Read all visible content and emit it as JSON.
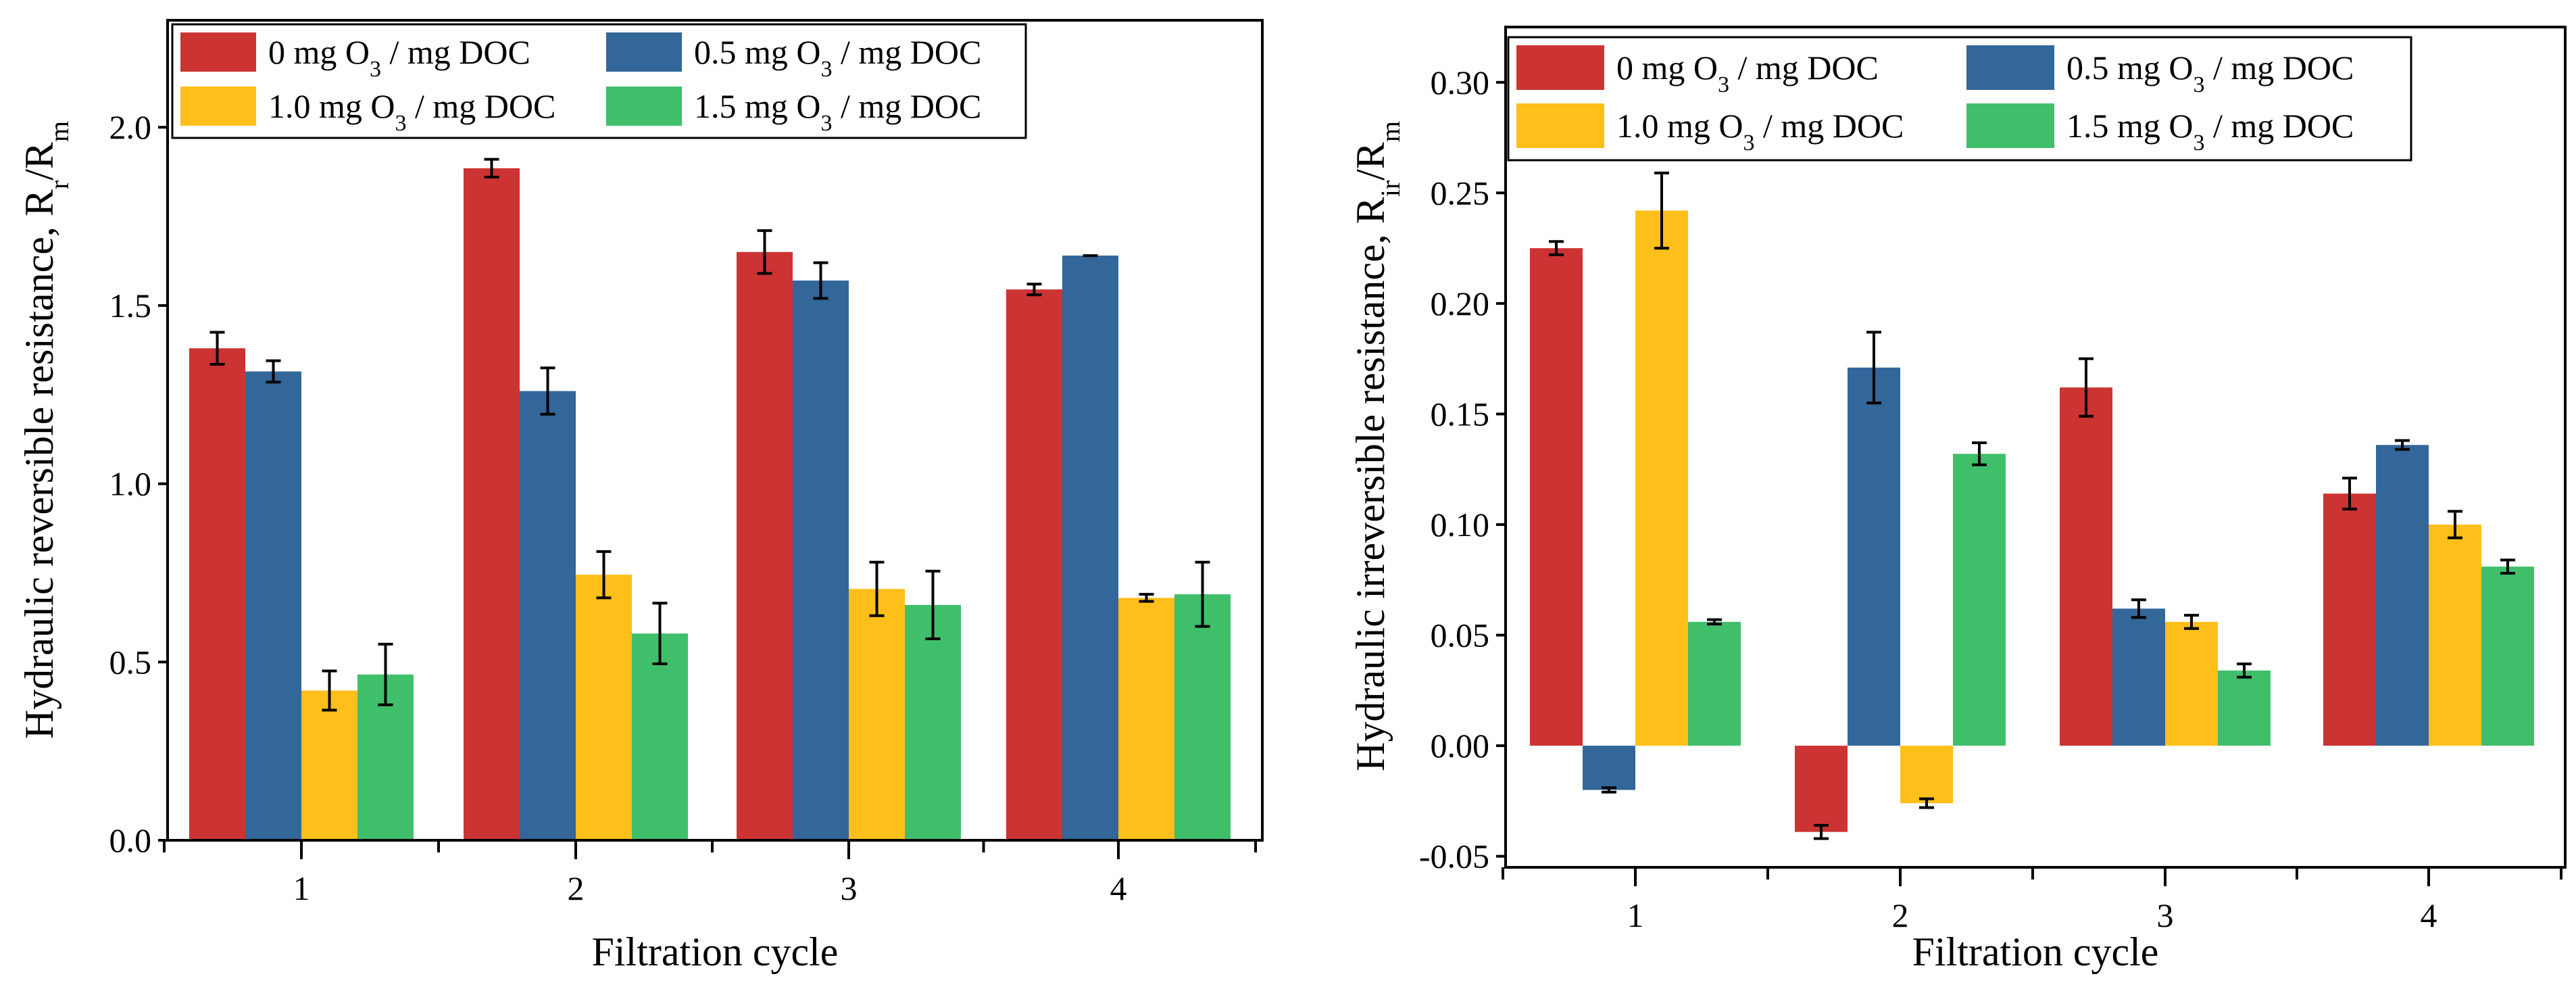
{
  "colors": {
    "s0": "#cc3333",
    "s05": "#336699",
    "s10": "#ffbf1a",
    "s15": "#40bf6b"
  },
  "chart_data": [
    {
      "type": "bar",
      "title": "",
      "xlabel": "Filtration cycle",
      "ylabel": {
        "main": "Hydraulic reversible resistance, R",
        "sub1": "r",
        "mid": "/R",
        "sub2": "m"
      },
      "categories": [
        "1",
        "2",
        "3",
        "4"
      ],
      "ylim": [
        0,
        2.3
      ],
      "yticks": [
        0.0,
        0.5,
        1.0,
        1.5,
        2.0
      ],
      "ytick_labels": [
        "0.0",
        "0.5",
        "1.0",
        "1.5",
        "2.0"
      ],
      "legend": "top-left, two columns",
      "series": [
        {
          "key": "s0",
          "label": {
            "pre": "0    mg O",
            "sub": "3",
            "post": " / mg DOC"
          },
          "values": [
            1.38,
            1.885,
            1.65,
            1.545
          ],
          "errors": [
            0.045,
            0.025,
            0.06,
            0.015
          ]
        },
        {
          "key": "s05",
          "label": {
            "pre": "0.5 mg O",
            "sub": "3",
            "post": " / mg DOC"
          },
          "values": [
            1.315,
            1.26,
            1.57,
            1.64
          ],
          "errors": [
            0.03,
            0.065,
            0.05,
            0.0
          ]
        },
        {
          "key": "s10",
          "label": {
            "pre": "1.0 mg O",
            "sub": "3",
            "post": " / mg DOC"
          },
          "values": [
            0.42,
            0.745,
            0.705,
            0.68
          ],
          "errors": [
            0.055,
            0.065,
            0.075,
            0.01
          ]
        },
        {
          "key": "s15",
          "label": {
            "pre": "1.5 mg O",
            "sub": "3",
            "post": " / mg DOC"
          },
          "values": [
            0.465,
            0.58,
            0.66,
            0.69
          ],
          "errors": [
            0.085,
            0.085,
            0.095,
            0.09
          ]
        }
      ]
    },
    {
      "type": "bar",
      "title": "",
      "xlabel": "Filtration cycle",
      "ylabel": {
        "main": "Hydraulic irreversible resistance, R",
        "sub1": "ir",
        "mid": "/R",
        "sub2": "m"
      },
      "categories": [
        "1",
        "2",
        "3",
        "4"
      ],
      "ylim": [
        -0.055,
        0.325
      ],
      "yticks": [
        -0.05,
        0.0,
        0.05,
        0.1,
        0.15,
        0.2,
        0.25,
        0.3
      ],
      "ytick_labels": [
        "-0.05",
        "0.00",
        "0.05",
        "0.10",
        "0.15",
        "0.20",
        "0.25",
        "0.30"
      ],
      "legend": "top-left, two columns",
      "series": [
        {
          "key": "s0",
          "label": {
            "pre": "0    mg O",
            "sub": "3",
            "post": " / mg DOC"
          },
          "values": [
            0.225,
            -0.039,
            0.162,
            0.114
          ],
          "errors": [
            0.003,
            0.003,
            0.013,
            0.007
          ]
        },
        {
          "key": "s05",
          "label": {
            "pre": "0.5 mg O",
            "sub": "3",
            "post": " / mg DOC"
          },
          "values": [
            -0.02,
            0.171,
            0.062,
            0.136
          ],
          "errors": [
            0.001,
            0.016,
            0.004,
            0.002
          ]
        },
        {
          "key": "s10",
          "label": {
            "pre": "1.0 mg O",
            "sub": "3",
            "post": " / mg DOC"
          },
          "values": [
            0.242,
            -0.026,
            0.056,
            0.1
          ],
          "errors": [
            0.017,
            0.002,
            0.003,
            0.006
          ]
        },
        {
          "key": "s15",
          "label": {
            "pre": "1.5 mg O",
            "sub": "3",
            "post": " / mg DOC"
          },
          "values": [
            0.056,
            0.132,
            0.034,
            0.081
          ],
          "errors": [
            0.001,
            0.005,
            0.003,
            0.003
          ]
        }
      ]
    }
  ]
}
